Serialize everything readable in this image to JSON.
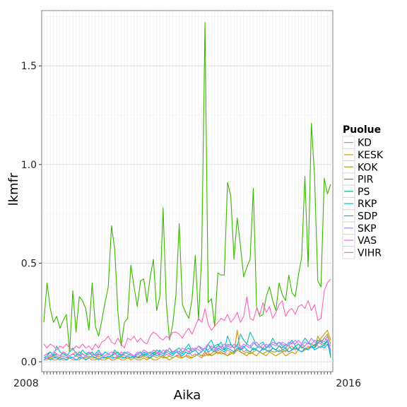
{
  "chart_data": {
    "type": "line",
    "title": "",
    "xlabel": "Aika",
    "ylabel": "lkmfr",
    "ylim": [
      -0.05,
      1.78
    ],
    "yticks": [
      0.0,
      0.5,
      1.0,
      1.5
    ],
    "ytick_labels": [
      "0.0",
      "0.5",
      "1.0",
      "1.5"
    ],
    "x_tick_label_first": "2008",
    "x_tick_label_last": "2016",
    "n_points": 90,
    "grid": true,
    "legend": {
      "title": "Puolue",
      "position": "right"
    },
    "series": [
      {
        "name": "KD",
        "color": "#F8766D",
        "values": [
          0.02,
          0.03,
          0.02,
          0.04,
          0.03,
          0.02,
          0.05,
          0.03,
          0.02,
          0.02,
          0.03,
          0.02,
          0.04,
          0.03,
          0.02,
          0.03,
          0.02,
          0.04,
          0.03,
          0.02,
          0.02,
          0.03,
          0.05,
          0.02,
          0.03,
          0.02,
          0.03,
          0.04,
          0.02,
          0.03,
          0.02,
          0.04,
          0.03,
          0.02,
          0.03,
          0.05,
          0.03,
          0.02,
          0.04,
          0.03,
          0.02,
          0.03,
          0.04,
          0.02,
          0.03,
          0.05,
          0.03,
          0.04,
          0.03,
          0.02,
          0.04,
          0.05,
          0.03,
          0.04,
          0.06,
          0.05,
          0.04,
          0.06,
          0.05,
          0.04,
          0.06,
          0.07,
          0.05,
          0.06,
          0.05,
          0.07,
          0.06,
          0.05,
          0.07,
          0.06,
          0.05,
          0.07,
          0.06,
          0.08,
          0.06,
          0.05,
          0.07,
          0.08,
          0.06,
          0.07,
          0.08,
          0.06,
          0.08,
          0.07,
          0.09,
          0.08,
          0.07,
          0.09,
          0.1,
          0.08
        ]
      },
      {
        "name": "KESK",
        "color": "#D89000",
        "values": [
          0.01,
          0.01,
          0.02,
          0.01,
          0.01,
          0.02,
          0.01,
          0.01,
          0.02,
          0.01,
          0.01,
          0.01,
          0.02,
          0.01,
          0.02,
          0.01,
          0.01,
          0.02,
          0.01,
          0.01,
          0.02,
          0.01,
          0.01,
          0.02,
          0.01,
          0.01,
          0.02,
          0.01,
          0.02,
          0.01,
          0.01,
          0.02,
          0.01,
          0.02,
          0.01,
          0.01,
          0.02,
          0.03,
          0.02,
          0.01,
          0.02,
          0.03,
          0.02,
          0.02,
          0.03,
          0.02,
          0.02,
          0.03,
          0.04,
          0.03,
          0.05,
          0.03,
          0.04,
          0.06,
          0.04,
          0.05,
          0.04,
          0.03,
          0.05,
          0.04,
          0.16,
          0.05,
          0.04,
          0.03,
          0.05,
          0.04,
          0.03,
          0.05,
          0.04,
          0.03,
          0.05,
          0.04,
          0.03,
          0.04,
          0.05,
          0.03,
          0.04,
          0.05,
          0.04,
          0.06,
          0.05,
          0.07,
          0.06,
          0.08,
          0.07,
          0.09,
          0.12,
          0.14,
          0.16,
          0.11
        ]
      },
      {
        "name": "KOK",
        "color": "#A3A500",
        "values": [
          0.02,
          0.02,
          0.02,
          0.03,
          0.02,
          0.02,
          0.03,
          0.02,
          0.02,
          0.02,
          0.03,
          0.02,
          0.02,
          0.02,
          0.03,
          0.02,
          0.02,
          0.03,
          0.02,
          0.02,
          0.02,
          0.03,
          0.02,
          0.02,
          0.03,
          0.02,
          0.02,
          0.02,
          0.03,
          0.02,
          0.02,
          0.03,
          0.02,
          0.02,
          0.03,
          0.02,
          0.03,
          0.02,
          0.02,
          0.03,
          0.02,
          0.03,
          0.03,
          0.02,
          0.03,
          0.03,
          0.02,
          0.03,
          0.04,
          0.03,
          0.03,
          0.04,
          0.03,
          0.04,
          0.05,
          0.04,
          0.04,
          0.03,
          0.04,
          0.05,
          0.06,
          0.05,
          0.04,
          0.05,
          0.04,
          0.05,
          0.06,
          0.05,
          0.04,
          0.05,
          0.06,
          0.05,
          0.05,
          0.06,
          0.05,
          0.06,
          0.05,
          0.06,
          0.07,
          0.06,
          0.05,
          0.06,
          0.07,
          0.08,
          0.07,
          0.13,
          0.1,
          0.12,
          0.14,
          0.09
        ]
      },
      {
        "name": "PIR",
        "color": "#39B600",
        "values": [
          0.2,
          0.4,
          0.27,
          0.2,
          0.23,
          0.17,
          0.21,
          0.24,
          0.05,
          0.36,
          0.15,
          0.33,
          0.31,
          0.27,
          0.16,
          0.4,
          0.18,
          0.13,
          0.21,
          0.3,
          0.38,
          0.69,
          0.57,
          0.25,
          0.08,
          0.2,
          0.22,
          0.49,
          0.38,
          0.28,
          0.41,
          0.42,
          0.3,
          0.43,
          0.52,
          0.26,
          0.33,
          0.78,
          0.3,
          0.11,
          0.19,
          0.34,
          0.7,
          0.29,
          0.25,
          0.22,
          0.32,
          0.54,
          0.21,
          0.55,
          1.72,
          0.3,
          0.32,
          0.18,
          0.45,
          0.44,
          0.44,
          0.91,
          0.84,
          0.52,
          0.73,
          0.59,
          0.43,
          0.48,
          0.52,
          0.88,
          0.28,
          0.23,
          0.24,
          0.33,
          0.38,
          0.31,
          0.26,
          0.4,
          0.34,
          0.31,
          0.44,
          0.35,
          0.33,
          0.44,
          0.53,
          0.94,
          0.48,
          1.21,
          0.94,
          0.41,
          0.38,
          0.93,
          0.85,
          0.9
        ]
      },
      {
        "name": "PS",
        "color": "#00BF7D",
        "values": [
          0.03,
          0.04,
          0.05,
          0.03,
          0.04,
          0.03,
          0.05,
          0.04,
          0.03,
          0.04,
          0.03,
          0.05,
          0.04,
          0.03,
          0.04,
          0.05,
          0.03,
          0.04,
          0.03,
          0.05,
          0.04,
          0.03,
          0.04,
          0.05,
          0.03,
          0.04,
          0.05,
          0.04,
          0.03,
          0.04,
          0.05,
          0.03,
          0.04,
          0.05,
          0.04,
          0.06,
          0.05,
          0.04,
          0.06,
          0.05,
          0.04,
          0.06,
          0.07,
          0.05,
          0.06,
          0.07,
          0.05,
          0.06,
          0.08,
          0.06,
          0.07,
          0.09,
          0.06,
          0.08,
          0.09,
          0.07,
          0.06,
          0.08,
          0.09,
          0.07,
          0.08,
          0.06,
          0.07,
          0.09,
          0.08,
          0.06,
          0.07,
          0.08,
          0.06,
          0.07,
          0.09,
          0.07,
          0.06,
          0.08,
          0.07,
          0.09,
          0.08,
          0.06,
          0.08,
          0.09,
          0.07,
          0.08,
          0.1,
          0.09,
          0.08,
          0.11,
          0.1,
          0.09,
          0.11,
          0.02
        ]
      },
      {
        "name": "RKP",
        "color": "#00BFC4",
        "values": [
          0.02,
          0.03,
          0.05,
          0.03,
          0.08,
          0.05,
          0.04,
          0.03,
          0.05,
          0.07,
          0.04,
          0.03,
          0.06,
          0.04,
          0.05,
          0.03,
          0.04,
          0.06,
          0.03,
          0.05,
          0.04,
          0.03,
          0.06,
          0.04,
          0.03,
          0.05,
          0.04,
          0.03,
          0.02,
          0.04,
          0.03,
          0.05,
          0.04,
          0.03,
          0.05,
          0.04,
          0.06,
          0.04,
          0.05,
          0.07,
          0.04,
          0.06,
          0.05,
          0.04,
          0.07,
          0.09,
          0.05,
          0.06,
          0.08,
          0.07,
          0.05,
          0.09,
          0.11,
          0.07,
          0.08,
          0.1,
          0.06,
          0.13,
          0.09,
          0.07,
          0.08,
          0.14,
          0.11,
          0.09,
          0.15,
          0.12,
          0.08,
          0.09,
          0.1,
          0.07,
          0.08,
          0.12,
          0.09,
          0.1,
          0.08,
          0.07,
          0.09,
          0.11,
          0.08,
          0.06,
          0.09,
          0.12,
          0.1,
          0.08,
          0.07,
          0.1,
          0.09,
          0.08,
          0.11,
          0.03
        ]
      },
      {
        "name": "SDP",
        "color": "#00A9FF",
        "values": [
          0.01,
          0.02,
          0.01,
          0.02,
          0.02,
          0.01,
          0.02,
          0.01,
          0.02,
          0.02,
          0.01,
          0.02,
          0.02,
          0.01,
          0.02,
          0.03,
          0.02,
          0.01,
          0.02,
          0.02,
          0.03,
          0.02,
          0.02,
          0.03,
          0.02,
          0.02,
          0.03,
          0.02,
          0.03,
          0.02,
          0.03,
          0.04,
          0.03,
          0.02,
          0.04,
          0.03,
          0.04,
          0.03,
          0.05,
          0.04,
          0.03,
          0.05,
          0.04,
          0.03,
          0.05,
          0.04,
          0.05,
          0.06,
          0.04,
          0.05,
          0.07,
          0.05,
          0.06,
          0.05,
          0.07,
          0.06,
          0.05,
          0.07,
          0.06,
          0.05,
          0.07,
          0.06,
          0.08,
          0.06,
          0.05,
          0.07,
          0.06,
          0.05,
          0.07,
          0.06,
          0.05,
          0.07,
          0.06,
          0.05,
          0.06,
          0.07,
          0.05,
          0.06,
          0.07,
          0.06,
          0.05,
          0.07,
          0.06,
          0.08,
          0.06,
          0.07,
          0.08,
          0.07,
          0.09,
          0.04
        ]
      },
      {
        "name": "SKP",
        "color": "#9590FF",
        "values": [
          0.02,
          0.02,
          0.03,
          0.02,
          0.03,
          0.02,
          0.03,
          0.02,
          0.03,
          0.02,
          0.03,
          0.04,
          0.02,
          0.03,
          0.02,
          0.03,
          0.04,
          0.03,
          0.02,
          0.03,
          0.04,
          0.03,
          0.02,
          0.03,
          0.04,
          0.03,
          0.03,
          0.04,
          0.03,
          0.04,
          0.03,
          0.04,
          0.05,
          0.04,
          0.03,
          0.04,
          0.05,
          0.04,
          0.05,
          0.04,
          0.05,
          0.06,
          0.04,
          0.05,
          0.06,
          0.05,
          0.06,
          0.07,
          0.06,
          0.05,
          0.07,
          0.06,
          0.08,
          0.07,
          0.06,
          0.08,
          0.07,
          0.09,
          0.08,
          0.07,
          0.09,
          0.08,
          0.07,
          0.09,
          0.08,
          0.1,
          0.08,
          0.07,
          0.09,
          0.08,
          0.07,
          0.09,
          0.08,
          0.1,
          0.09,
          0.08,
          0.1,
          0.09,
          0.11,
          0.09,
          0.08,
          0.1,
          0.09,
          0.12,
          0.1,
          0.09,
          0.11,
          0.1,
          0.13,
          0.05
        ]
      },
      {
        "name": "VAS",
        "color": "#E76BF3",
        "values": [
          0.03,
          0.04,
          0.03,
          0.05,
          0.04,
          0.03,
          0.05,
          0.04,
          0.03,
          0.04,
          0.05,
          0.03,
          0.04,
          0.03,
          0.05,
          0.04,
          0.03,
          0.05,
          0.04,
          0.03,
          0.04,
          0.05,
          0.04,
          0.03,
          0.05,
          0.04,
          0.05,
          0.04,
          0.03,
          0.05,
          0.04,
          0.06,
          0.05,
          0.04,
          0.06,
          0.05,
          0.04,
          0.06,
          0.05,
          0.07,
          0.05,
          0.06,
          0.05,
          0.07,
          0.06,
          0.05,
          0.07,
          0.06,
          0.08,
          0.06,
          0.07,
          0.09,
          0.07,
          0.06,
          0.08,
          0.07,
          0.09,
          0.08,
          0.07,
          0.09,
          0.08,
          0.07,
          0.09,
          0.08,
          0.07,
          0.09,
          0.1,
          0.08,
          0.07,
          0.09,
          0.08,
          0.1,
          0.09,
          0.08,
          0.1,
          0.09,
          0.08,
          0.1,
          0.09,
          0.11,
          0.09,
          0.08,
          0.1,
          0.09,
          0.11,
          0.1,
          0.09,
          0.12,
          0.11,
          0.06
        ]
      },
      {
        "name": "VIHR",
        "color": "#FF62BC",
        "values": [
          0.09,
          0.07,
          0.09,
          0.08,
          0.06,
          0.08,
          0.07,
          0.09,
          0.07,
          0.06,
          0.08,
          0.07,
          0.09,
          0.07,
          0.08,
          0.06,
          0.09,
          0.07,
          0.1,
          0.11,
          0.13,
          0.1,
          0.09,
          0.12,
          0.09,
          0.07,
          0.12,
          0.11,
          0.13,
          0.1,
          0.12,
          0.1,
          0.09,
          0.13,
          0.15,
          0.14,
          0.12,
          0.11,
          0.13,
          0.12,
          0.15,
          0.15,
          0.14,
          0.12,
          0.15,
          0.17,
          0.14,
          0.18,
          0.22,
          0.2,
          0.27,
          0.19,
          0.16,
          0.18,
          0.2,
          0.22,
          0.21,
          0.24,
          0.2,
          0.22,
          0.25,
          0.2,
          0.23,
          0.33,
          0.22,
          0.21,
          0.27,
          0.24,
          0.3,
          0.25,
          0.28,
          0.22,
          0.25,
          0.29,
          0.31,
          0.23,
          0.26,
          0.27,
          0.24,
          0.28,
          0.29,
          0.27,
          0.31,
          0.26,
          0.29,
          0.21,
          0.22,
          0.36,
          0.4,
          0.42
        ]
      }
    ]
  }
}
